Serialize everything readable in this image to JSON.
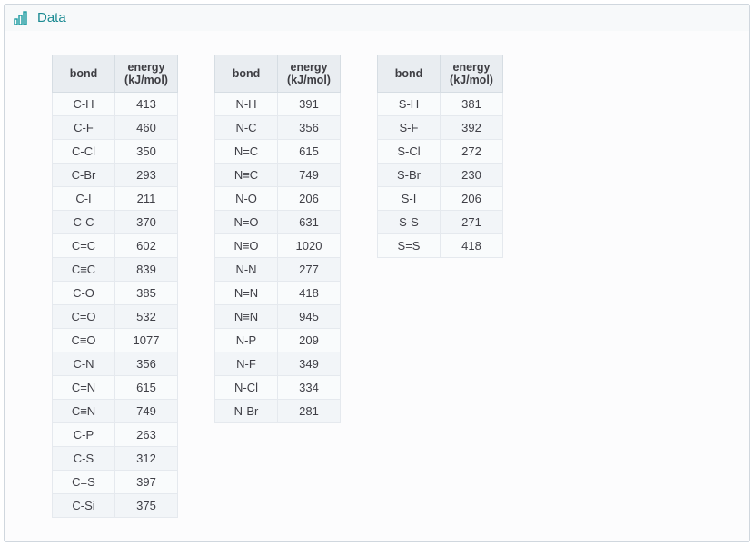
{
  "header": {
    "icon_name": "bar-chart-icon",
    "title": "Data"
  },
  "columns": {
    "bond": "bond",
    "energy": "energy",
    "unit": "(kJ/mol)"
  },
  "colors": {
    "header_text": "#1a8a92",
    "icon": "#1a9ba0",
    "th_bg": "#e9edf1",
    "row_odd": "#f9fbfc",
    "row_even": "#f2f5f8",
    "border": "#d6dde3"
  },
  "tables": [
    {
      "rows": [
        {
          "bond": "C-H",
          "energy": 413
        },
        {
          "bond": "C-F",
          "energy": 460
        },
        {
          "bond": "C-Cl",
          "energy": 350
        },
        {
          "bond": "C-Br",
          "energy": 293
        },
        {
          "bond": "C-I",
          "energy": 211
        },
        {
          "bond": "C-C",
          "energy": 370
        },
        {
          "bond": "C=C",
          "energy": 602
        },
        {
          "bond": "C≡C",
          "energy": 839
        },
        {
          "bond": "C-O",
          "energy": 385
        },
        {
          "bond": "C=O",
          "energy": 532
        },
        {
          "bond": "C≡O",
          "energy": 1077
        },
        {
          "bond": "C-N",
          "energy": 356
        },
        {
          "bond": "C=N",
          "energy": 615
        },
        {
          "bond": "C≡N",
          "energy": 749
        },
        {
          "bond": "C-P",
          "energy": 263
        },
        {
          "bond": "C-S",
          "energy": 312
        },
        {
          "bond": "C=S",
          "energy": 397
        },
        {
          "bond": "C-Si",
          "energy": 375
        }
      ]
    },
    {
      "rows": [
        {
          "bond": "N-H",
          "energy": 391
        },
        {
          "bond": "N-C",
          "energy": 356
        },
        {
          "bond": "N=C",
          "energy": 615
        },
        {
          "bond": "N≡C",
          "energy": 749
        },
        {
          "bond": "N-O",
          "energy": 206
        },
        {
          "bond": "N=O",
          "energy": 631
        },
        {
          "bond": "N≡O",
          "energy": 1020
        },
        {
          "bond": "N-N",
          "energy": 277
        },
        {
          "bond": "N=N",
          "energy": 418
        },
        {
          "bond": "N≡N",
          "energy": 945
        },
        {
          "bond": "N-P",
          "energy": 209
        },
        {
          "bond": "N-F",
          "energy": 349
        },
        {
          "bond": "N-Cl",
          "energy": 334
        },
        {
          "bond": "N-Br",
          "energy": 281
        }
      ]
    },
    {
      "rows": [
        {
          "bond": "S-H",
          "energy": 381
        },
        {
          "bond": "S-F",
          "energy": 392
        },
        {
          "bond": "S-Cl",
          "energy": 272
        },
        {
          "bond": "S-Br",
          "energy": 230
        },
        {
          "bond": "S-I",
          "energy": 206
        },
        {
          "bond": "S-S",
          "energy": 271
        },
        {
          "bond": "S=S",
          "energy": 418
        }
      ]
    }
  ]
}
